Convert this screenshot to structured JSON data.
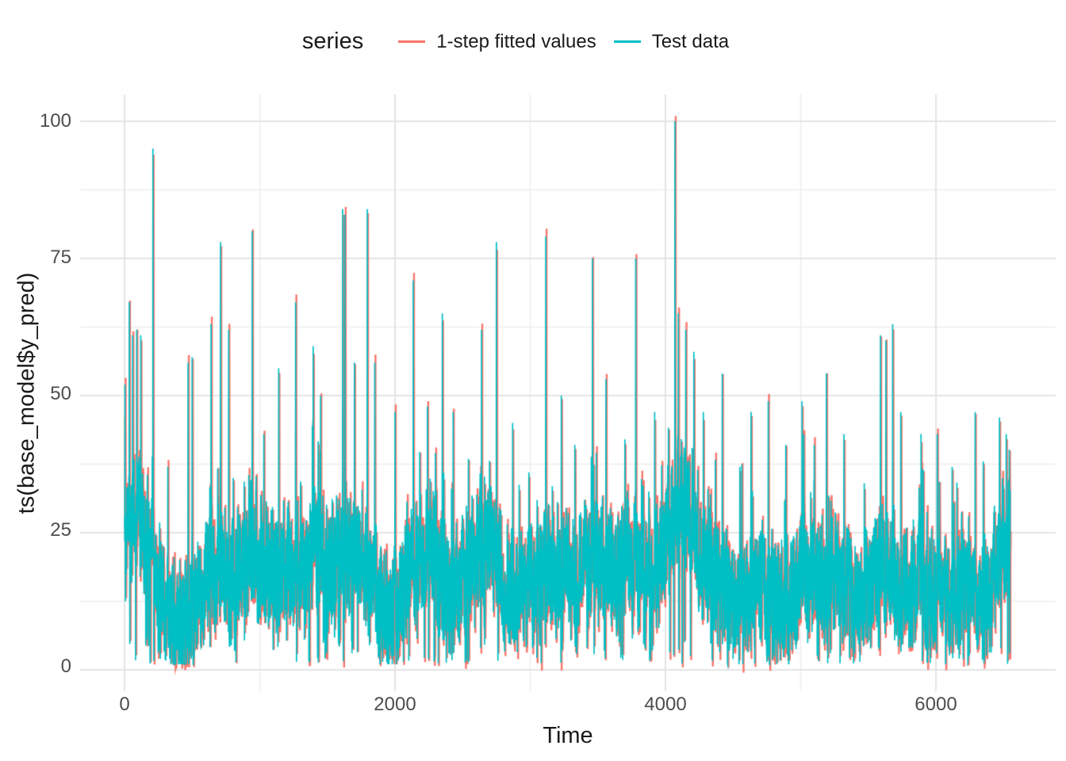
{
  "legend": {
    "title": "series",
    "items": [
      {
        "label": "1-step fitted values",
        "color": "#F8766D"
      },
      {
        "label": "Test data",
        "color": "#00BFC4"
      }
    ]
  },
  "y_axis": {
    "title": "ts(base_model$y_pred)",
    "tick_labels": [
      "100",
      "75",
      "50",
      "25",
      "0"
    ]
  },
  "x_axis": {
    "title": "Time",
    "tick_labels": [
      "0",
      "2000",
      "4000",
      "6000"
    ]
  },
  "colors": {
    "background": "#FFFFFF",
    "grid_major": "#E4E4E4",
    "grid_minor": "#EDEDED",
    "tick_text": "#4D4D4D",
    "title_text": "#1A1A1A",
    "fitted_line": "#F8766D",
    "test_line": "#00BFC4"
  },
  "chart_data": {
    "type": "line",
    "title": "",
    "xlabel": "Time",
    "ylabel": "ts(base_model$y_pred)",
    "x_range": [
      0,
      6557
    ],
    "ylim": [
      0,
      100
    ],
    "x_ticks": [
      0,
      2000,
      4000,
      6000
    ],
    "x_minor_ticks": [
      1000,
      3000,
      5000
    ],
    "y_ticks": [
      0,
      25,
      50,
      75,
      100
    ],
    "y_minor_ticks": [
      12.5,
      37.5,
      62.5,
      87.5
    ],
    "grid": true,
    "legend_position": "top",
    "n_points": 6550,
    "series": [
      {
        "name": "1-step fitted values",
        "color": "#F8766D",
        "first_value": 46,
        "description": "one-step-ahead fitted values; lags the test data by one step and is almost everywhere hidden beneath it, peeking out as thin salmon slivers"
      },
      {
        "name": "Test data",
        "color": "#00BFC4",
        "description": "dense noisy series of ~6550 observations, mostly between 5 and 40, with isolated spikes listed in peaks"
      }
    ],
    "baseline": [
      [
        0,
        24
      ],
      [
        100,
        28
      ],
      [
        200,
        20
      ],
      [
        300,
        10
      ],
      [
        420,
        7
      ],
      [
        550,
        13
      ],
      [
        650,
        20
      ],
      [
        800,
        16
      ],
      [
        950,
        22
      ],
      [
        1100,
        16
      ],
      [
        1250,
        20
      ],
      [
        1400,
        22
      ],
      [
        1550,
        17
      ],
      [
        1700,
        23
      ],
      [
        1850,
        14
      ],
      [
        1950,
        9
      ],
      [
        2100,
        18
      ],
      [
        2250,
        22
      ],
      [
        2400,
        13
      ],
      [
        2550,
        20
      ],
      [
        2700,
        22
      ],
      [
        2850,
        13
      ],
      [
        3000,
        16
      ],
      [
        3150,
        19
      ],
      [
        3300,
        16
      ],
      [
        3450,
        20
      ],
      [
        3600,
        17
      ],
      [
        3750,
        19
      ],
      [
        3900,
        16
      ],
      [
        4030,
        26
      ],
      [
        4120,
        30
      ],
      [
        4250,
        20
      ],
      [
        4400,
        17
      ],
      [
        4550,
        11
      ],
      [
        4700,
        15
      ],
      [
        4850,
        11
      ],
      [
        5000,
        18
      ],
      [
        5150,
        15
      ],
      [
        5300,
        17
      ],
      [
        5450,
        12
      ],
      [
        5600,
        20
      ],
      [
        5750,
        13
      ],
      [
        5900,
        16
      ],
      [
        6050,
        14
      ],
      [
        6200,
        15
      ],
      [
        6350,
        13
      ],
      [
        6450,
        20
      ],
      [
        6557,
        24
      ]
    ],
    "peaks": [
      [
        3,
        52
      ],
      [
        35,
        67
      ],
      [
        60,
        61
      ],
      [
        90,
        62
      ],
      [
        120,
        61
      ],
      [
        210,
        95
      ],
      [
        320,
        37
      ],
      [
        470,
        56
      ],
      [
        500,
        57
      ],
      [
        640,
        63
      ],
      [
        710,
        78
      ],
      [
        770,
        62
      ],
      [
        944,
        80
      ],
      [
        1030,
        43
      ],
      [
        1140,
        55
      ],
      [
        1265,
        67
      ],
      [
        1395,
        59
      ],
      [
        1450,
        50
      ],
      [
        1613,
        84
      ],
      [
        1630,
        83
      ],
      [
        1700,
        56
      ],
      [
        1795,
        84
      ],
      [
        1850,
        56
      ],
      [
        2000,
        47
      ],
      [
        2135,
        71
      ],
      [
        2240,
        48
      ],
      [
        2350,
        65
      ],
      [
        2430,
        47
      ],
      [
        2640,
        62
      ],
      [
        2750,
        78
      ],
      [
        2870,
        45
      ],
      [
        2990,
        36
      ],
      [
        3115,
        79
      ],
      [
        3230,
        50
      ],
      [
        3330,
        41
      ],
      [
        3460,
        75
      ],
      [
        3560,
        53
      ],
      [
        3700,
        42
      ],
      [
        3780,
        75
      ],
      [
        3920,
        47
      ],
      [
        4070,
        100
      ],
      [
        4095,
        65
      ],
      [
        4150,
        62
      ],
      [
        4210,
        58
      ],
      [
        4280,
        47
      ],
      [
        4420,
        54
      ],
      [
        4550,
        37
      ],
      [
        4760,
        49
      ],
      [
        4890,
        41
      ],
      [
        5010,
        49
      ],
      [
        5100,
        41
      ],
      [
        5190,
        54
      ],
      [
        5320,
        43
      ],
      [
        5470,
        34
      ],
      [
        5590,
        61
      ],
      [
        5630,
        60
      ],
      [
        5680,
        63
      ],
      [
        5740,
        47
      ],
      [
        5890,
        43
      ],
      [
        6010,
        43
      ],
      [
        6120,
        37
      ],
      [
        6290,
        47
      ],
      [
        6350,
        38
      ],
      [
        6470,
        46
      ],
      [
        6520,
        43
      ]
    ],
    "noise": {
      "seed": 42,
      "amplitude": 9,
      "burst_probability": 0.03,
      "burst_amplitude": 16,
      "min": 1,
      "max": 58
    }
  }
}
